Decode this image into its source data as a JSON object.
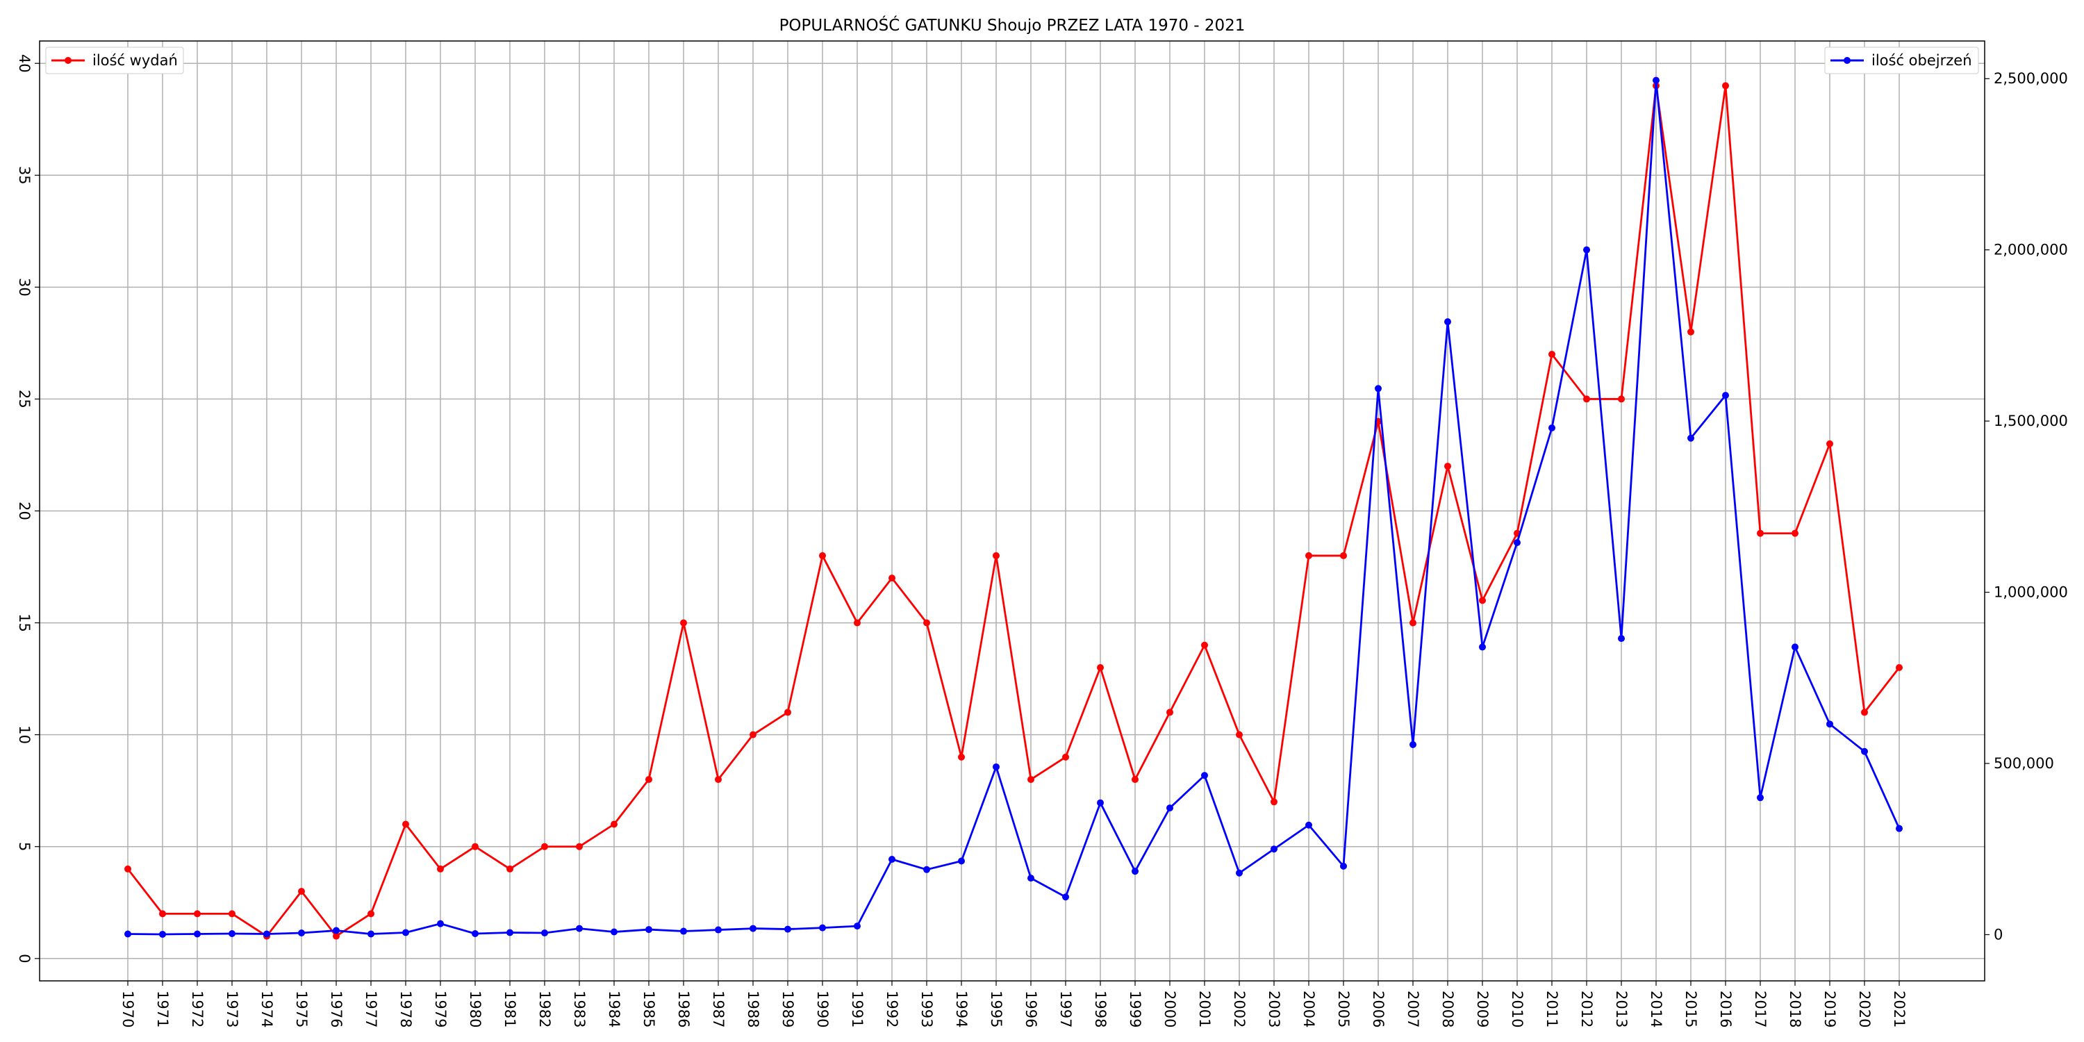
{
  "chart_data": {
    "type": "line",
    "title": "POPULARNOŚĆ GATUNKU Shoujo PRZEZ LATA 1970 - 2021",
    "x": [
      1970,
      1971,
      1972,
      1973,
      1974,
      1975,
      1976,
      1977,
      1978,
      1979,
      1980,
      1981,
      1982,
      1983,
      1984,
      1985,
      1986,
      1987,
      1988,
      1989,
      1990,
      1991,
      1992,
      1993,
      1994,
      1995,
      1996,
      1997,
      1998,
      1999,
      2000,
      2001,
      2002,
      2003,
      2004,
      2005,
      2006,
      2007,
      2008,
      2009,
      2010,
      2011,
      2012,
      2013,
      2014,
      2015,
      2016,
      2017,
      2018,
      2019,
      2020,
      2021
    ],
    "grid": true,
    "left_axis": {
      "ylim": [
        -1,
        41
      ],
      "ticks": [
        0,
        5,
        10,
        15,
        20,
        25,
        30,
        35,
        40
      ],
      "tick_labels": [
        "0",
        "5",
        "10",
        "15",
        "20",
        "25",
        "30",
        "35",
        "40"
      ]
    },
    "right_axis": {
      "ylim": [
        -135000,
        2610000
      ],
      "ticks": [
        0,
        500000,
        1000000,
        1500000,
        2000000,
        2500000
      ],
      "tick_labels": [
        "0",
        "500,000",
        "1,000,000",
        "1,500,000",
        "2,000,000",
        "2,500,000"
      ]
    },
    "series": [
      {
        "name": "ilość wydań",
        "axis": "left",
        "color": "#ff0000",
        "legend_position": "upper left",
        "values": [
          4,
          2,
          2,
          2,
          1,
          3,
          1,
          2,
          6,
          4,
          5,
          4,
          5,
          5,
          6,
          8,
          15,
          8,
          10,
          11,
          18,
          15,
          17,
          15,
          9,
          18,
          8,
          9,
          13,
          8,
          11,
          14,
          10,
          7,
          18,
          18,
          24,
          15,
          22,
          16,
          19,
          27,
          25,
          25,
          39,
          28,
          39,
          19,
          19,
          23,
          11,
          13
        ]
      },
      {
        "name": "ilość obejrzeń",
        "axis": "right",
        "color": "#0000ff",
        "legend_position": "upper right",
        "values": [
          2000,
          1000,
          2000,
          3000,
          2000,
          5000,
          12000,
          2000,
          6000,
          32000,
          3000,
          6000,
          5000,
          18000,
          8000,
          15000,
          10000,
          14000,
          18000,
          16000,
          20000,
          25000,
          220000,
          190000,
          215000,
          490000,
          165000,
          110000,
          385000,
          185000,
          370000,
          465000,
          180000,
          250000,
          320000,
          200000,
          1595000,
          555000,
          1790000,
          840000,
          1145000,
          1480000,
          2000000,
          865000,
          2495000,
          1450000,
          1575000,
          400000,
          840000,
          615000,
          535000,
          310000
        ]
      }
    ]
  }
}
